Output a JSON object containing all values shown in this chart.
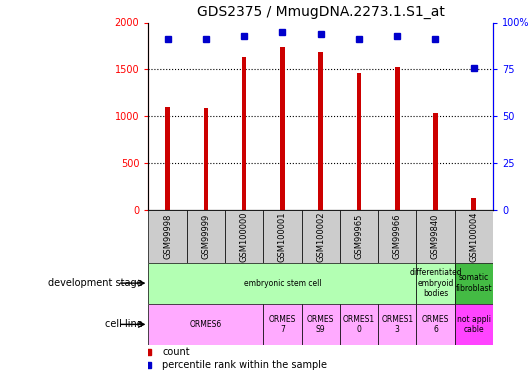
{
  "title": "GDS2375 / MmugDNA.2273.1.S1_at",
  "samples": [
    "GSM99998",
    "GSM99999",
    "GSM100000",
    "GSM100001",
    "GSM100002",
    "GSM99965",
    "GSM99966",
    "GSM99840",
    "GSM100004"
  ],
  "counts": [
    1100,
    1090,
    1630,
    1740,
    1690,
    1460,
    1530,
    1040,
    130
  ],
  "percentiles": [
    91,
    91,
    93,
    95,
    94,
    91,
    93,
    91,
    76
  ],
  "bar_color": "#cc0000",
  "dot_color": "#0000cc",
  "bar_width": 0.12,
  "ylim_left": [
    0,
    2000
  ],
  "ylim_right": [
    0,
    100
  ],
  "yticks_left": [
    0,
    500,
    1000,
    1500,
    2000
  ],
  "yticks_right": [
    0,
    25,
    50,
    75,
    100
  ],
  "yticklabels_left": [
    "0",
    "500",
    "1000",
    "1500",
    "2000"
  ],
  "yticklabels_right": [
    "0",
    "25",
    "50",
    "75",
    "100%"
  ],
  "sample_box_color": "#cccccc",
  "dev_stage_groups": [
    {
      "text": "embryonic stem cell",
      "start": 0,
      "end": 7,
      "color": "#b3ffb3"
    },
    {
      "text": "differentiated\nembryoid\nbodies",
      "start": 7,
      "end": 8,
      "color": "#b3ffb3"
    },
    {
      "text": "somatic\nfibroblast",
      "start": 8,
      "end": 9,
      "color": "#44bb44"
    }
  ],
  "cell_line_groups": [
    {
      "text": "ORMES6",
      "start": 0,
      "end": 3,
      "color": "#ffaaff"
    },
    {
      "text": "ORMES\n7",
      "start": 3,
      "end": 4,
      "color": "#ffaaff"
    },
    {
      "text": "ORMES\nS9",
      "start": 4,
      "end": 5,
      "color": "#ffaaff"
    },
    {
      "text": "ORMES1\n0",
      "start": 5,
      "end": 6,
      "color": "#ffaaff"
    },
    {
      "text": "ORMES1\n3",
      "start": 6,
      "end": 7,
      "color": "#ffaaff"
    },
    {
      "text": "ORMES\n6",
      "start": 7,
      "end": 8,
      "color": "#ffaaff"
    },
    {
      "text": "not appli\ncable",
      "start": 8,
      "end": 9,
      "color": "#ff44ff"
    }
  ],
  "legend_count_color": "#cc0000",
  "legend_pct_color": "#0000cc",
  "grid_dotted_at": [
    500,
    1000,
    1500
  ],
  "tick_fontsize": 7,
  "label_fontsize": 7,
  "title_fontsize": 10
}
